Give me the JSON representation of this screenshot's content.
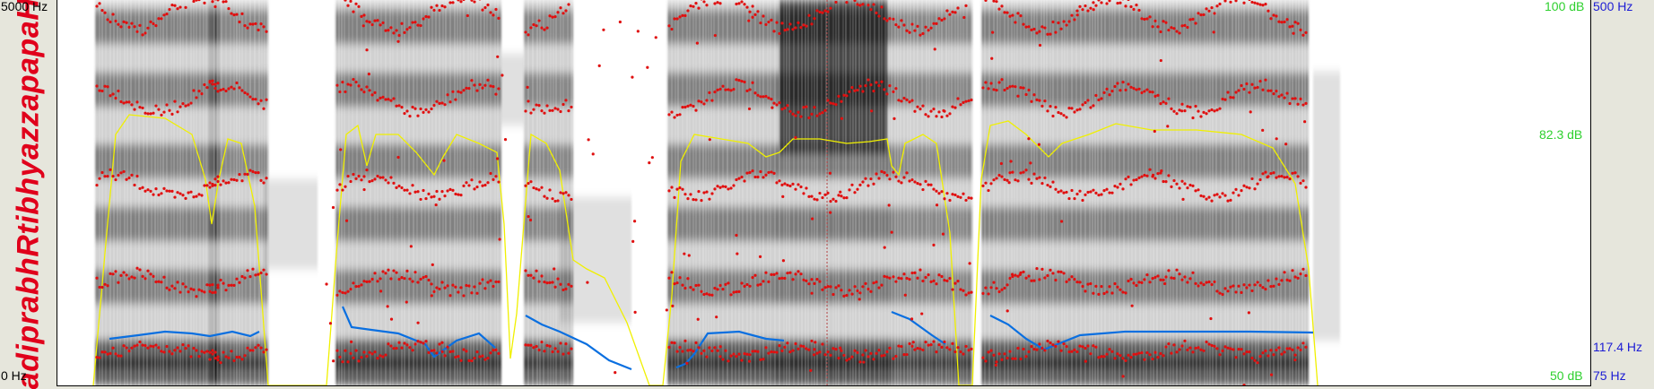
{
  "transcription": "adiprabhRtibhyazzapapaH",
  "frequency_axis": {
    "top": "5000 Hz",
    "bottom": "0 Hz"
  },
  "intensity_axis": {
    "top": "100 dB",
    "middle": "82.3 dB",
    "bottom": "50 dB"
  },
  "pitch_axis": {
    "top": "500 Hz",
    "mark": "117.4 Hz",
    "bottom": "75 Hz"
  },
  "colors": {
    "transcription": "#e0001b",
    "intensity_curve": "#f0f000",
    "pitch_curve": "#0a6fe0",
    "formant_dots": "#e01010",
    "intensity_labels": "#2ed02e",
    "pitch_labels": "#1c1cd4",
    "spectrogram": "#000000",
    "cursor": "#b04040"
  },
  "overlays": {
    "spectrogram": true,
    "pitch_track": true,
    "intensity_track": true,
    "formant_tracks": 5,
    "cursor_line": true
  }
}
